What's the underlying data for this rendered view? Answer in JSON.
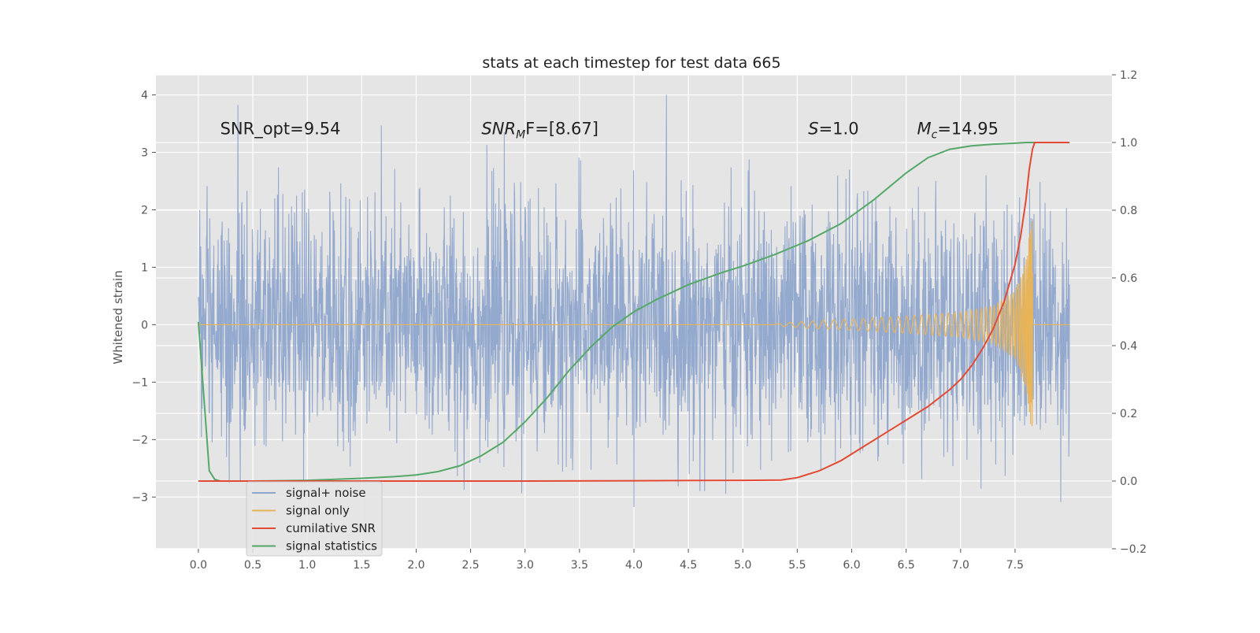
{
  "chart_data": {
    "type": "line",
    "title": "stats at each timestep for test data 665",
    "xlabel": "",
    "ylabel": "Whitened strain",
    "y2label": "",
    "xlim": [
      -0.39,
      8.39
    ],
    "ylim": [
      -3.9,
      4.35
    ],
    "y2lim": [
      -0.2,
      1.2
    ],
    "xticks": [
      0.0,
      0.5,
      1.0,
      1.5,
      2.0,
      2.5,
      3.0,
      3.5,
      4.0,
      4.5,
      5.0,
      5.5,
      6.0,
      6.5,
      7.0,
      7.5
    ],
    "xtick_labels": [
      "0.0",
      "0.5",
      "1.0",
      "1.5",
      "2.0",
      "2.5",
      "3.0",
      "3.5",
      "4.0",
      "4.5",
      "5.0",
      "5.5",
      "6.0",
      "6.5",
      "7.0",
      "7.5"
    ],
    "yticks": [
      -3,
      -2,
      -1,
      0,
      1,
      2,
      3,
      4
    ],
    "ytick_labels": [
      "−3",
      "−2",
      "−1",
      "0",
      "1",
      "2",
      "3",
      "4"
    ],
    "y2ticks": [
      -0.2,
      0.0,
      0.2,
      0.4,
      0.6,
      0.8,
      1.0,
      1.2
    ],
    "y2tick_labels": [
      "−0.2",
      "0.0",
      "0.2",
      "0.4",
      "0.6",
      "0.8",
      "1.0",
      "1.2"
    ],
    "grid": true,
    "legend_position": "bottom-left",
    "annotations": [
      {
        "text": "SNR_opt=9.54",
        "x": 0.2,
        "y": 3.25
      },
      {
        "text": "SNR_MF=[8.67]",
        "x": 2.6,
        "y": 3.25
      },
      {
        "text": "S=1.0",
        "x": 5.6,
        "y": 3.25
      },
      {
        "text": "M_c=14.95",
        "x": 6.6,
        "y": 3.25
      }
    ],
    "annotation_parts": [
      {
        "pre": "SNR_opt=9.54",
        "italic": "",
        "sub": "",
        "post": ""
      },
      {
        "pre": "",
        "italic": "SNR",
        "sub": "M",
        "post": "F=[8.67]"
      },
      {
        "pre": "",
        "italic": "S",
        "sub": "",
        "post": "=1.0"
      },
      {
        "pre": "",
        "italic": "M",
        "sub": "c",
        "post": "=14.95"
      }
    ],
    "series": [
      {
        "name": "signal+ noise",
        "axis": "left",
        "color": "#8fa5cc",
        "x_range": [
          0.0,
          8.0
        ],
        "noise_std": 1.0,
        "y_range_observed": [
          -3.4,
          4.0
        ]
      },
      {
        "name": "signal only",
        "axis": "left",
        "color": "#e8b45a",
        "chirp_start": 5.3,
        "chirp_end": 7.66,
        "x": [
          0.0,
          5.3,
          5.5,
          6.0,
          6.5,
          7.0,
          7.3,
          7.5,
          7.6,
          7.66,
          7.7,
          8.0
        ],
        "envelope": [
          0.0,
          0.02,
          0.05,
          0.1,
          0.15,
          0.22,
          0.33,
          0.6,
          1.1,
          2.0,
          0.0,
          0.0
        ]
      },
      {
        "name": "cumilative SNR",
        "axis": "right",
        "color": "#e24a33",
        "x": [
          0.0,
          1.0,
          2.0,
          3.0,
          4.0,
          5.0,
          5.35,
          5.5,
          5.7,
          5.9,
          6.1,
          6.3,
          6.5,
          6.7,
          6.9,
          7.0,
          7.1,
          7.2,
          7.3,
          7.4,
          7.5,
          7.55,
          7.6,
          7.63,
          7.66,
          7.68,
          8.0
        ],
        "y": [
          0.0,
          0.0,
          0.0,
          0.0,
          0.001,
          0.002,
          0.003,
          0.01,
          0.03,
          0.06,
          0.1,
          0.14,
          0.18,
          0.22,
          0.27,
          0.3,
          0.34,
          0.39,
          0.45,
          0.53,
          0.64,
          0.72,
          0.83,
          0.92,
          0.98,
          1.0,
          1.0
        ]
      },
      {
        "name": "signal statistics",
        "axis": "right",
        "color": "#55a868",
        "x": [
          0.0,
          0.05,
          0.1,
          0.15,
          0.2,
          0.3,
          0.5,
          1.0,
          1.5,
          1.8,
          2.0,
          2.2,
          2.4,
          2.6,
          2.8,
          3.0,
          3.2,
          3.4,
          3.6,
          3.8,
          4.0,
          4.2,
          4.5,
          4.8,
          5.0,
          5.3,
          5.6,
          5.9,
          6.2,
          6.5,
          6.7,
          6.9,
          7.1,
          7.3,
          7.5,
          7.6,
          7.7,
          8.0
        ],
        "y": [
          0.47,
          0.25,
          0.03,
          0.005,
          0.0,
          0.0,
          0.0,
          0.002,
          0.008,
          0.013,
          0.018,
          0.028,
          0.045,
          0.075,
          0.115,
          0.175,
          0.245,
          0.325,
          0.395,
          0.455,
          0.5,
          0.535,
          0.58,
          0.615,
          0.635,
          0.67,
          0.71,
          0.76,
          0.83,
          0.91,
          0.955,
          0.98,
          0.99,
          0.995,
          0.998,
          1.0,
          1.0,
          1.0
        ]
      }
    ],
    "legend": [
      {
        "label": "signal+ noise",
        "color": "#8fa5cc"
      },
      {
        "label": "signal only",
        "color": "#e8b45a"
      },
      {
        "label": "cumilative SNR",
        "color": "#e24a33"
      },
      {
        "label": "signal statistics",
        "color": "#55a868"
      }
    ]
  },
  "style": {
    "plot_bg": "#e5e5e5",
    "grid_color": "#ffffff"
  }
}
